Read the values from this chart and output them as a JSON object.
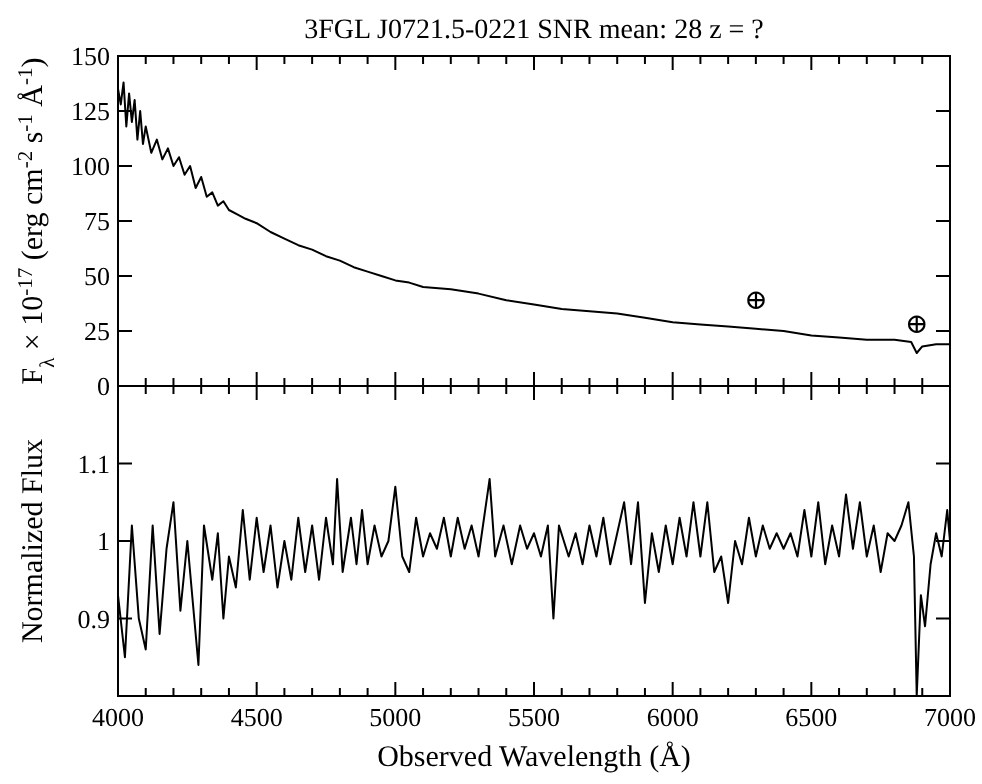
{
  "chart_data": [
    {
      "type": "line",
      "title": "3FGL J0721.5-0221  SNR mean: 28  z = ?",
      "ylabel": "F$_{λ}$ × 10$^{-17}$ (erg cm$^{-2}$ s$^{-1}$ Å$^{-1}$)",
      "color": "#000000",
      "x": [
        4000,
        4010,
        4020,
        4030,
        4040,
        4050,
        4060,
        4070,
        4080,
        4090,
        4100,
        4120,
        4140,
        4160,
        4180,
        4200,
        4220,
        4240,
        4260,
        4280,
        4300,
        4320,
        4340,
        4360,
        4380,
        4400,
        4430,
        4460,
        4500,
        4550,
        4600,
        4650,
        4700,
        4750,
        4800,
        4850,
        4900,
        4950,
        5000,
        5050,
        5100,
        5200,
        5300,
        5400,
        5500,
        5550,
        5600,
        5700,
        5800,
        5900,
        6000,
        6100,
        6200,
        6300,
        6400,
        6500,
        6600,
        6700,
        6800,
        6860,
        6880,
        6900,
        6950,
        7000
      ],
      "values": [
        135,
        128,
        138,
        118,
        133,
        120,
        130,
        112,
        125,
        110,
        118,
        106,
        112,
        103,
        108,
        100,
        104,
        96,
        100,
        90,
        95,
        86,
        88,
        82,
        84,
        80,
        78,
        76,
        74,
        70,
        67,
        64,
        62,
        59,
        57,
        54,
        52,
        50,
        48,
        47,
        45,
        44,
        42,
        39,
        37,
        36,
        35,
        34,
        33,
        31,
        29,
        28,
        27,
        26,
        25,
        23,
        22,
        21,
        21,
        20,
        15,
        18,
        19,
        19
      ],
      "annotations": [
        {
          "text": "⊕",
          "x": 6300,
          "y": 26
        },
        {
          "text": "⊕",
          "x": 6880,
          "y": 15
        }
      ],
      "xlim": [
        4000,
        7000
      ],
      "xticks": [
        4000,
        {
          "value": 4100,
          "label": null
        },
        {
          "value": 4200,
          "label": null
        },
        {
          "value": 4300,
          "label": null
        },
        {
          "value": 4400,
          "label": null
        },
        4500,
        {
          "value": 4600,
          "label": null
        },
        {
          "value": 4700,
          "label": null
        },
        {
          "value": 4800,
          "label": null
        },
        {
          "value": 4900,
          "label": null
        },
        5000,
        {
          "value": 5100,
          "label": null
        },
        {
          "value": 5200,
          "label": null
        },
        {
          "value": 5300,
          "label": null
        },
        {
          "value": 5400,
          "label": null
        },
        5500,
        {
          "value": 5600,
          "label": null
        },
        {
          "value": 5700,
          "label": null
        },
        {
          "value": 5800,
          "label": null
        },
        {
          "value": 5900,
          "label": null
        },
        6000,
        {
          "value": 6100,
          "label": null
        },
        {
          "value": 6200,
          "label": null
        },
        {
          "value": 6300,
          "label": null
        },
        {
          "value": 6400,
          "label": null
        },
        6500,
        {
          "value": 6600,
          "label": null
        },
        {
          "value": 6700,
          "label": null
        },
        {
          "value": 6800,
          "label": null
        },
        {
          "value": 6900,
          "label": null
        },
        7000
      ],
      "ylim": [
        0,
        150
      ],
      "yticks": [
        0,
        25,
        50,
        75,
        100,
        125,
        150
      ],
      "tick_labels": "y",
      "grid": false
    },
    {
      "type": "line",
      "xlabel": "Observed Wavelength (Å)",
      "ylabel": "Normalized Flux",
      "color": "#000000",
      "x": [
        4000,
        4025,
        4050,
        4075,
        4100,
        4125,
        4150,
        4175,
        4200,
        4225,
        4250,
        4275,
        4290,
        4310,
        4340,
        4360,
        4380,
        4400,
        4425,
        4450,
        4475,
        4500,
        4525,
        4550,
        4575,
        4600,
        4625,
        4650,
        4675,
        4700,
        4725,
        4750,
        4775,
        4790,
        4810,
        4840,
        4860,
        4880,
        4900,
        4925,
        4950,
        4975,
        5000,
        5025,
        5050,
        5075,
        5100,
        5125,
        5150,
        5175,
        5200,
        5225,
        5250,
        5275,
        5300,
        5320,
        5340,
        5360,
        5390,
        5420,
        5450,
        5475,
        5500,
        5525,
        5550,
        5570,
        5590,
        5625,
        5650,
        5675,
        5700,
        5725,
        5750,
        5775,
        5800,
        5825,
        5850,
        5875,
        5900,
        5925,
        5950,
        5975,
        6000,
        6025,
        6050,
        6075,
        6100,
        6125,
        6150,
        6175,
        6200,
        6225,
        6250,
        6275,
        6300,
        6325,
        6350,
        6375,
        6400,
        6425,
        6450,
        6475,
        6500,
        6525,
        6550,
        6575,
        6600,
        6625,
        6650,
        6675,
        6700,
        6725,
        6750,
        6775,
        6800,
        6825,
        6850,
        6870,
        6880,
        6895,
        6910,
        6930,
        6950,
        6970,
        6990,
        7000
      ],
      "values": [
        0.93,
        0.85,
        1.02,
        0.9,
        0.86,
        1.02,
        0.88,
        0.99,
        1.05,
        0.91,
        1.0,
        0.9,
        0.84,
        1.02,
        0.95,
        1.01,
        0.9,
        0.98,
        0.94,
        1.04,
        0.95,
        1.03,
        0.96,
        1.02,
        0.94,
        1.0,
        0.95,
        1.03,
        0.96,
        1.02,
        0.95,
        1.03,
        0.97,
        1.08,
        0.96,
        1.03,
        0.97,
        1.04,
        0.97,
        1.02,
        0.98,
        1.0,
        1.07,
        0.98,
        0.96,
        1.03,
        0.98,
        1.01,
        0.99,
        1.03,
        0.98,
        1.03,
        0.99,
        1.02,
        0.98,
        1.03,
        1.08,
        0.98,
        1.02,
        0.97,
        1.02,
        0.99,
        1.01,
        0.98,
        1.02,
        0.9,
        1.02,
        0.98,
        1.01,
        0.97,
        1.02,
        0.98,
        1.03,
        0.97,
        1.01,
        1.05,
        0.97,
        1.05,
        0.92,
        1.01,
        0.96,
        1.02,
        0.97,
        1.03,
        0.98,
        1.05,
        0.98,
        1.05,
        0.96,
        0.98,
        0.92,
        1.0,
        0.97,
        1.03,
        0.98,
        1.02,
        0.99,
        1.01,
        0.99,
        1.01,
        0.98,
        1.04,
        0.98,
        1.05,
        0.97,
        1.02,
        0.98,
        1.06,
        0.99,
        1.05,
        0.98,
        1.02,
        0.96,
        1.01,
        1.0,
        1.02,
        1.05,
        0.98,
        0.8,
        0.93,
        0.89,
        0.97,
        1.01,
        0.98,
        1.04,
        1.0
      ],
      "xlim": [
        4000,
        7000
      ],
      "xticks": [
        4000,
        {
          "value": 4100,
          "label": null
        },
        {
          "value": 4200,
          "label": null
        },
        {
          "value": 4300,
          "label": null
        },
        {
          "value": 4400,
          "label": null
        },
        4500,
        {
          "value": 4600,
          "label": null
        },
        {
          "value": 4700,
          "label": null
        },
        {
          "value": 4800,
          "label": null
        },
        {
          "value": 4900,
          "label": null
        },
        5000,
        {
          "value": 5100,
          "label": null
        },
        {
          "value": 5200,
          "label": null
        },
        {
          "value": 5300,
          "label": null
        },
        {
          "value": 5400,
          "label": null
        },
        5500,
        {
          "value": 5600,
          "label": null
        },
        {
          "value": 5700,
          "label": null
        },
        {
          "value": 5800,
          "label": null
        },
        {
          "value": 5900,
          "label": null
        },
        6000,
        {
          "value": 6100,
          "label": null
        },
        {
          "value": 6200,
          "label": null
        },
        {
          "value": 6300,
          "label": null
        },
        {
          "value": 6400,
          "label": null
        },
        6500,
        {
          "value": 6600,
          "label": null
        },
        {
          "value": 6700,
          "label": null
        },
        {
          "value": 6800,
          "label": null
        },
        {
          "value": 6900,
          "label": null
        },
        7000
      ],
      "ylim": [
        0.8,
        1.2
      ],
      "yticks": [
        0.9,
        1,
        1.1
      ],
      "grid": false
    }
  ]
}
